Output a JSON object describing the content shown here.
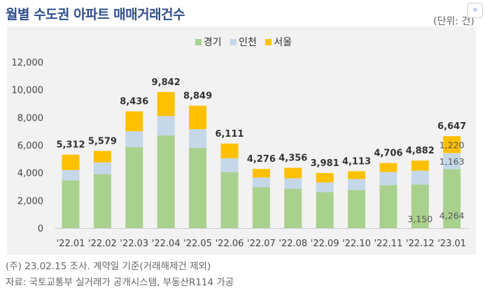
{
  "header": {
    "title": "월별 수도권 아파트 매매거래건수",
    "unit": "(단위: 건)"
  },
  "chart_data": {
    "type": "bar",
    "stacked": true,
    "categories": [
      "'22.01",
      "'22.02",
      "'22.03",
      "'22.04",
      "'22.05",
      "'22.06",
      "'22.07",
      "'22.08",
      "'22.09",
      "'22.10",
      "'22.11",
      "'22.12",
      "'23.01"
    ],
    "series": [
      {
        "name": "경기",
        "color": "#a9d18e",
        "values": [
          3450,
          3900,
          5850,
          6700,
          5800,
          4050,
          2950,
          2850,
          2600,
          2750,
          3100,
          3150,
          4264
        ]
      },
      {
        "name": "인천",
        "color": "#c5d8ea",
        "values": [
          750,
          850,
          1150,
          1400,
          1350,
          1000,
          700,
          750,
          700,
          800,
          950,
          1000,
          1163
        ]
      },
      {
        "name": "서울",
        "color": "#ffc000",
        "values": [
          1112,
          829,
          1436,
          1742,
          1699,
          1061,
          626,
          756,
          681,
          563,
          656,
          732,
          1220
        ]
      }
    ],
    "totals": [
      "5,312",
      "5,579",
      "8,436",
      "9,842",
      "8,849",
      "6,111",
      "4,276",
      "4,356",
      "3,981",
      "4,113",
      "4,706",
      "4,882",
      "6,647"
    ],
    "data_labels": [
      {
        "category_index": 11,
        "series": "경기",
        "text": "3,150"
      },
      {
        "category_index": 12,
        "series": "경기",
        "text": "4,264"
      },
      {
        "category_index": 12,
        "series": "인천",
        "text": "1,163"
      },
      {
        "category_index": 12,
        "series": "서울",
        "text": "1,220"
      }
    ],
    "yticks": [
      0,
      2000,
      4000,
      6000,
      8000,
      10000,
      12000
    ],
    "ytick_labels": [
      "0",
      "2,000",
      "4,000",
      "6,000",
      "8,000",
      "10,000",
      "12,000"
    ],
    "ylim": [
      0,
      12000
    ],
    "grid": false,
    "legend_position": "top-center"
  },
  "notes": {
    "line1": "(주) 23.02.15 조사. 계약일 기준(거래해제건 제외)",
    "line2": "자료: 국토교통부 실거래가 공개시스템, 부동산R114 가공"
  }
}
